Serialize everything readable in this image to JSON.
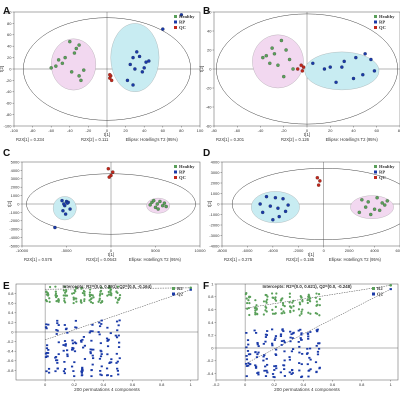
{
  "chart_data": [
    {
      "panel": "A",
      "type": "scatter",
      "legend": [
        "Healthy",
        "RP",
        "QC"
      ],
      "legend_position": "top-right",
      "xlabel": "t[1]",
      "ylabel": "t[2]",
      "xlim": [
        -100,
        100
      ],
      "ylim": [
        -100,
        100
      ],
      "xticks": [
        "-100",
        "-80",
        "-60",
        "-40",
        "-20",
        "0",
        "20",
        "40",
        "60",
        "80",
        "100"
      ],
      "yticks": [
        "100",
        "80",
        "60",
        "40",
        "20",
        "0",
        "-20",
        "-40",
        "-60",
        "-80",
        "-100"
      ],
      "footer": [
        "R2X[1] = 0.234",
        "R2X[2] = 0.111",
        "Ellipse: Hotelling's T2 (95%)"
      ],
      "ellipse": {
        "cx": 0,
        "cy": 0,
        "rx": 90,
        "ry": 90
      },
      "series": [
        {
          "name": "Healthy",
          "color": "#5aa05a",
          "ellipse": {
            "cx": -36,
            "cy": 8,
            "rx": 24,
            "ry": 45,
            "fill": "#f2d8f0"
          },
          "x": [
            -40,
            -30,
            -33,
            -45,
            -52,
            -48,
            -55,
            -60,
            -38,
            -25,
            -30,
            -28,
            -35
          ],
          "y": [
            48,
            42,
            36,
            20,
            16,
            10,
            5,
            2,
            -5,
            -2,
            -12,
            -20,
            28
          ]
        },
        {
          "name": "RP",
          "color": "#1a3aa8",
          "ellipse": {
            "cx": 30,
            "cy": 20,
            "rx": 26,
            "ry": 60,
            "fill": "#c8ecf2"
          },
          "x": [
            60,
            32,
            35,
            28,
            42,
            25,
            30,
            38,
            45,
            22,
            28,
            40,
            80
          ],
          "y": [
            70,
            30,
            22,
            20,
            12,
            8,
            0,
            -5,
            14,
            -20,
            -28,
            2,
            95
          ]
        },
        {
          "name": "QC",
          "color": "#c0281c",
          "x": [
            3,
            4,
            5,
            3
          ],
          "y": [
            -16,
            -12,
            -20,
            -10
          ]
        }
      ]
    },
    {
      "panel": "B",
      "type": "scatter",
      "legend": [
        "Healthy",
        "RP",
        "QC"
      ],
      "legend_position": "top-right",
      "xlabel": "t[1]",
      "ylabel": "t[2]",
      "xlim": [
        -80,
        80
      ],
      "ylim": [
        -60,
        60
      ],
      "xticks": [
        "-80",
        "-60",
        "-40",
        "-20",
        "0",
        "20",
        "40",
        "60",
        "80"
      ],
      "yticks": [
        "60",
        "40",
        "20",
        "0",
        "-20",
        "-40",
        "-60"
      ],
      "footer": [
        "R2X[1] = 0.201",
        "R2X[2] = 0.126",
        "Ellipse: Hotelling's T2 (95%)"
      ],
      "ellipse": {
        "cx": 0,
        "cy": 0,
        "rx": 78,
        "ry": 58
      },
      "series": [
        {
          "name": "Healthy",
          "color": "#5aa05a",
          "ellipse": {
            "cx": -25,
            "cy": 8,
            "rx": 22,
            "ry": 28,
            "fill": "#f2d8f0"
          },
          "x": [
            -22,
            -30,
            -18,
            -28,
            -15,
            -35,
            -25,
            -20,
            -12,
            -32,
            -38
          ],
          "y": [
            30,
            22,
            20,
            16,
            10,
            14,
            4,
            -8,
            0,
            6,
            12
          ]
        },
        {
          "name": "RP",
          "color": "#1a3aa8",
          "ellipse": {
            "cx": 30,
            "cy": -2,
            "rx": 32,
            "ry": 20,
            "fill": "#c8ecf2"
          },
          "x": [
            50,
            42,
            32,
            55,
            30,
            20,
            40,
            48,
            25,
            15,
            58,
            5
          ],
          "y": [
            16,
            12,
            8,
            10,
            2,
            2,
            -10,
            -6,
            -14,
            0,
            -2,
            6
          ]
        },
        {
          "name": "QC",
          "color": "#c0281c",
          "x": [
            -5,
            -3,
            -8,
            -4
          ],
          "y": [
            4,
            2,
            0,
            -2
          ]
        }
      ]
    },
    {
      "panel": "C",
      "type": "scatter",
      "legend": [
        "Healthy",
        "RP",
        "QC"
      ],
      "legend_position": "top-right",
      "xlabel": "t[1]",
      "ylabel": "t[2]",
      "xlim": [
        -10000,
        10000
      ],
      "ylim": [
        -5000,
        5000
      ],
      "xticks": [
        "-10000",
        "-5000",
        "0",
        "5000",
        "10000"
      ],
      "yticks": [
        "5000",
        "4000",
        "3000",
        "2000",
        "1000",
        "0",
        "-1000",
        "-2000",
        "-3000",
        "-4000",
        "-5000"
      ],
      "footer": [
        "R2X[1] = 0.576",
        "R2X[2] = 0.0643",
        "Ellipse: Hotelling's T2 (95%)"
      ],
      "ellipse": {
        "cx": 0,
        "cy": 0,
        "rx": 9500,
        "ry": 3600
      },
      "series": [
        {
          "name": "Healthy",
          "color": "#5aa05a",
          "ellipse": {
            "cx": 5300,
            "cy": -200,
            "rx": 1300,
            "ry": 900,
            "fill": "#f2d8f0"
          },
          "x": [
            4600,
            5200,
            5800,
            6000,
            5000,
            4800,
            5500,
            6200,
            4400,
            5300
          ],
          "y": [
            200,
            0,
            -200,
            100,
            -400,
            400,
            300,
            -300,
            -100,
            -600
          ]
        },
        {
          "name": "RP",
          "color": "#1a3aa8",
          "ellipse": {
            "cx": -5200,
            "cy": -500,
            "rx": 1300,
            "ry": 1400,
            "fill": "#c8ecf2"
          },
          "x": [
            -5500,
            -5000,
            -4800,
            -5200,
            -4600,
            -5400,
            -5100,
            -5300,
            -4900,
            -6300
          ],
          "y": [
            400,
            300,
            200,
            -200,
            -600,
            -800,
            -1200,
            0,
            100,
            -2800
          ]
        },
        {
          "name": "QC",
          "color": "#c0281c",
          "x": [
            -300,
            200,
            0,
            -200
          ],
          "y": [
            4200,
            3800,
            3400,
            3200
          ]
        }
      ]
    },
    {
      "panel": "D",
      "type": "scatter",
      "legend": [
        "Healthy",
        "RP",
        "QC"
      ],
      "legend_position": "top-right",
      "xlabel": "t[1]",
      "ylabel": "t[2]",
      "xlim": [
        -8000,
        6000
      ],
      "ylim": [
        -4000,
        4000
      ],
      "xticks": [
        "-8000",
        "-6000",
        "-4000",
        "-2000",
        "0",
        "2000",
        "4000",
        "6000"
      ],
      "yticks": [
        "4000",
        "3000",
        "2000",
        "1000",
        "0",
        "-1000",
        "-2000",
        "-3000",
        "-4000"
      ],
      "footer": [
        "R2X[1] = 0.275",
        "R2X[2] = 0.185",
        "Ellipse: Hotelling's T2 (95%)"
      ],
      "ellipse": {
        "cx": 0,
        "cy": 0,
        "rx": 7200,
        "ry": 3400
      },
      "series": [
        {
          "name": "Healthy",
          "color": "#5aa05a",
          "ellipse": {
            "cx": 3800,
            "cy": -300,
            "rx": 1700,
            "ry": 1100,
            "fill": "#f2d8f0"
          },
          "x": [
            3000,
            3500,
            4200,
            4800,
            3300,
            4000,
            4600,
            2800,
            3700,
            4400,
            5000
          ],
          "y": [
            400,
            200,
            600,
            -100,
            -300,
            -500,
            100,
            -800,
            -1000,
            -600,
            300
          ]
        },
        {
          "name": "RP",
          "color": "#1a3aa8",
          "ellipse": {
            "cx": -3800,
            "cy": -300,
            "rx": 1900,
            "ry": 1500,
            "fill": "#c8ecf2"
          },
          "x": [
            -4500,
            -3800,
            -3200,
            -5000,
            -4200,
            -3600,
            -2800,
            -4800,
            -3500,
            -4000,
            -3000
          ],
          "y": [
            700,
            600,
            500,
            0,
            -200,
            -400,
            -100,
            -800,
            -1200,
            -1500,
            -700
          ]
        },
        {
          "name": "QC",
          "color": "#c0281c",
          "x": [
            -500,
            -300,
            -400
          ],
          "y": [
            2500,
            2200,
            1800
          ]
        }
      ]
    },
    {
      "panel": "E",
      "type": "scatter",
      "legend": [
        "R2",
        "Q2"
      ],
      "legend_position": "top-right",
      "title": "Intercepts: R2=(0.0, 0.891), Q2=(0.0, -0.164)",
      "xlabel": "200 permutations 4 components",
      "ylabel": "",
      "xlim": [
        -0.2,
        1.05
      ],
      "ylim": [
        -1.0,
        1.0
      ],
      "xticks": [
        "0",
        "0.2",
        "0.4",
        "0.6",
        "0.8",
        "1"
      ],
      "yticks": [
        "0.8",
        "0.6",
        "0.4",
        "0.2",
        "0",
        "-0.2",
        "-0.4",
        "-0.6",
        "-0.8"
      ],
      "series": [
        {
          "name": "R2",
          "color": "#5aa05a",
          "intercept": 0.891,
          "end": 0.92,
          "x_bands": [
            0.02,
            0.08,
            0.14,
            0.2,
            0.26,
            0.32,
            0.38,
            0.44,
            0.5
          ],
          "y_range": [
            0.6,
            0.96
          ]
        },
        {
          "name": "Q2",
          "color": "#1a3aa8",
          "intercept": -0.164,
          "end": 0.88,
          "x_bands": [
            0.02,
            0.08,
            0.14,
            0.2,
            0.26,
            0.32,
            0.38,
            0.44,
            0.5
          ],
          "y_range": [
            -0.92,
            0.28
          ]
        }
      ]
    },
    {
      "panel": "F",
      "type": "scatter",
      "legend": [
        "R2",
        "Q2"
      ],
      "legend_position": "top-right",
      "title": "Intercepts: R2=(0.0, 0.621), Q2=(0.0, -0.248)",
      "xlabel": "200 permutations 4 components",
      "ylabel": "",
      "xlim": [
        -0.2,
        1.05
      ],
      "ylim": [
        -0.5,
        1.0
      ],
      "xticks": [
        "-0.2",
        "0",
        "0.2",
        "0.4",
        "0.6",
        "0.8",
        "1"
      ],
      "yticks": [
        "1",
        "0.8",
        "0.6",
        "0.4",
        "0.2",
        "0",
        "-0.2",
        "-0.4"
      ],
      "series": [
        {
          "name": "R2",
          "color": "#5aa05a",
          "intercept": 0.621,
          "end": 0.98,
          "x_bands": [
            0.02,
            0.08,
            0.14,
            0.2,
            0.26,
            0.32,
            0.38,
            0.44,
            0.5
          ],
          "y_range": [
            0.5,
            0.86
          ]
        },
        {
          "name": "Q2",
          "color": "#1a3aa8",
          "intercept": -0.248,
          "end": 0.92,
          "x_bands": [
            0.02,
            0.08,
            0.14,
            0.2,
            0.26,
            0.32,
            0.38,
            0.44,
            0.5
          ],
          "y_range": [
            -0.46,
            0.3
          ]
        }
      ]
    }
  ]
}
